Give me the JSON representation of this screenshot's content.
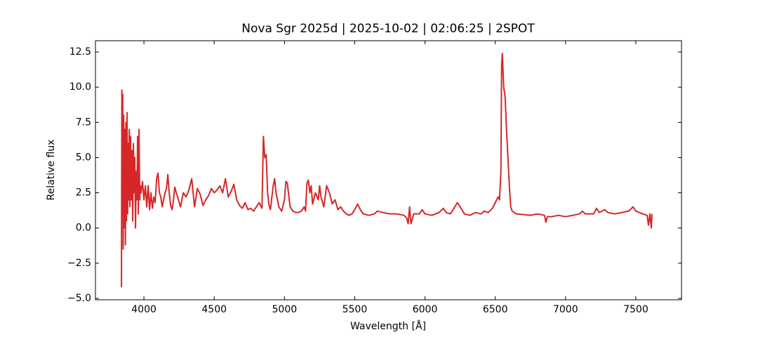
{
  "chart_data": {
    "type": "line",
    "title": "Nova Sgr 2025d | 2025-10-02 | 02:06:25 | 2SPOT",
    "xlabel": "Wavelength [Å]",
    "ylabel": "Relative flux",
    "xlim": [
      3655,
      7825
    ],
    "ylim": [
      -5.1,
      13.3
    ],
    "xticks": [
      4000,
      4500,
      5000,
      5500,
      6000,
      6500,
      7000,
      7500
    ],
    "yticks": [
      {
        "value": -5,
        "label": "−5.0"
      },
      {
        "value": -2.5,
        "label": "−2.5"
      },
      {
        "value": 0,
        "label": "0.0"
      },
      {
        "value": 2.5,
        "label": "2.5"
      },
      {
        "value": 5,
        "label": "5.0"
      },
      {
        "value": 7.5,
        "label": "7.5"
      },
      {
        "value": 10,
        "label": "10.0"
      },
      {
        "value": 12.5,
        "label": "12.5"
      }
    ],
    "grid": false,
    "series": [
      {
        "color": "#d62728",
        "x": [
          3840,
          3843,
          3846,
          3849,
          3852,
          3856,
          3860,
          3864,
          3868,
          3872,
          3876,
          3880,
          3884,
          3888,
          3892,
          3896,
          3900,
          3905,
          3910,
          3915,
          3920,
          3925,
          3930,
          3935,
          3940,
          3945,
          3950,
          3955,
          3960,
          3965,
          3970,
          3975,
          3980,
          3990,
          4000,
          4010,
          4020,
          4030,
          4040,
          4050,
          4060,
          4070,
          4080,
          4090,
          4100,
          4110,
          4120,
          4130,
          4140,
          4150,
          4160,
          4170,
          4180,
          4190,
          4200,
          4210,
          4220,
          4230,
          4240,
          4260,
          4280,
          4300,
          4320,
          4340,
          4350,
          4360,
          4380,
          4400,
          4420,
          4440,
          4460,
          4480,
          4500,
          4520,
          4540,
          4560,
          4580,
          4600,
          4620,
          4640,
          4660,
          4680,
          4700,
          4720,
          4740,
          4760,
          4780,
          4800,
          4820,
          4840,
          4850,
          4860,
          4870,
          4880,
          4890,
          4900,
          4920,
          4930,
          4940,
          4960,
          4980,
          5000,
          5010,
          5020,
          5040,
          5060,
          5080,
          5100,
          5120,
          5140,
          5150,
          5160,
          5170,
          5180,
          5190,
          5200,
          5220,
          5240,
          5250,
          5260,
          5280,
          5300,
          5320,
          5340,
          5360,
          5380,
          5400,
          5420,
          5440,
          5460,
          5480,
          5500,
          5520,
          5540,
          5560,
          5600,
          5640,
          5660,
          5700,
          5750,
          5800,
          5850,
          5870,
          5880,
          5890,
          5900,
          5920,
          5960,
          5980,
          6000,
          6050,
          6100,
          6130,
          6150,
          6180,
          6200,
          6230,
          6250,
          6280,
          6320,
          6360,
          6400,
          6420,
          6450,
          6480,
          6500,
          6520,
          6530,
          6540,
          6545,
          6550,
          6560,
          6570,
          6580,
          6590,
          6600,
          6610,
          6620,
          6650,
          6700,
          6750,
          6800,
          6850,
          6860,
          6870,
          6900,
          6950,
          7000,
          7050,
          7100,
          7120,
          7140,
          7200,
          7220,
          7240,
          7260,
          7280,
          7300,
          7350,
          7400,
          7450,
          7480,
          7500,
          7550,
          7580,
          7590,
          7600,
          7610,
          7615
        ],
        "values": [
          -4.2,
          9.8,
          1,
          9.5,
          -1.5,
          8,
          0,
          7,
          -1.2,
          7.5,
          0.5,
          8.2,
          1,
          6,
          2,
          7,
          1.5,
          6.5,
          2,
          5.5,
          0.5,
          6,
          2.5,
          5,
          0,
          4,
          2,
          6.5,
          1,
          7,
          2,
          3,
          2.5,
          3.3,
          2,
          3,
          1.5,
          3,
          1.3,
          2.5,
          1.4,
          2.2,
          1.8,
          3.5,
          3.9,
          2.5,
          2.2,
          1.5,
          2,
          2.5,
          2.8,
          3.8,
          2.5,
          1.6,
          1.3,
          2,
          2.9,
          2.5,
          2.2,
          1.5,
          2.5,
          2.2,
          2.7,
          3.5,
          2.5,
          1.5,
          2.8,
          2.4,
          1.6,
          2,
          2.3,
          2.8,
          2.5,
          2.7,
          3,
          2.5,
          3.5,
          2.2,
          2.6,
          3.1,
          2,
          1.6,
          1.4,
          1.8,
          1.3,
          1.4,
          1.2,
          1.5,
          1.8,
          1.4,
          6.5,
          5,
          5.2,
          2.5,
          1.6,
          1.3,
          3,
          3.5,
          2.5,
          1.5,
          1.2,
          2,
          3.3,
          3.2,
          1.5,
          1.2,
          1.1,
          1.1,
          1.2,
          1.5,
          1.2,
          3.2,
          3.4,
          2.5,
          3,
          1.7,
          2.5,
          2,
          3,
          2.2,
          1.5,
          3,
          2.5,
          1.7,
          2,
          1.3,
          1.5,
          1.2,
          1,
          0.9,
          1,
          1.3,
          1.7,
          1.3,
          1,
          0.9,
          1,
          1.2,
          1.1,
          1,
          1,
          0.9,
          0.7,
          0.3,
          1.5,
          0.3,
          1,
          1,
          1.3,
          1,
          0.9,
          1.1,
          1.4,
          1.1,
          1,
          1.3,
          1.8,
          1.5,
          1,
          0.9,
          1.1,
          1,
          1.2,
          1.1,
          1.4,
          1.8,
          2.2,
          2,
          4,
          11.5,
          12.4,
          10,
          9.3,
          7,
          5,
          3,
          1.5,
          1.2,
          1,
          0.95,
          0.9,
          1,
          0.9,
          0.4,
          0.8,
          0.8,
          0.9,
          0.8,
          0.9,
          1,
          1.2,
          1,
          1,
          1.4,
          1.1,
          1.2,
          1.3,
          1.1,
          1,
          1.1,
          1.2,
          1.5,
          1.2,
          1,
          0.9,
          0.2,
          1,
          0,
          1
        ]
      }
    ]
  }
}
